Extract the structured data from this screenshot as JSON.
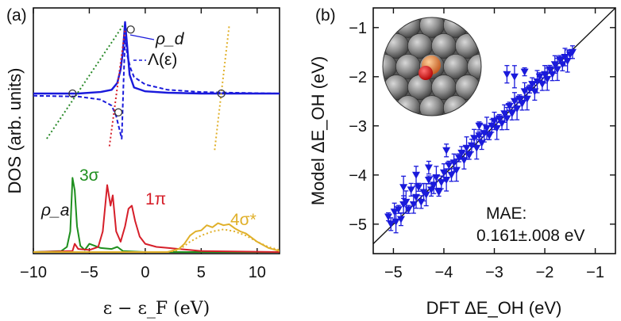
{
  "chart_data": [
    {
      "type": "line",
      "panel": "(a)",
      "xlabel": "ε − ε_F (eV)",
      "ylabel": "DOS (arb. units)",
      "xlim": [
        -10,
        12
      ],
      "xticks": [
        -10,
        -5,
        0,
        5,
        10
      ],
      "xtick_labels": [
        "−10",
        "−5",
        "0",
        "5",
        "10"
      ],
      "labels": {
        "rho_d": "ρ_d",
        "lambda": "Λ(ε)",
        "rho_a": "ρ_a",
        "s3": "3σ",
        "p1": "1π",
        "s4": "4σ*"
      },
      "series": [
        {
          "name": "ρ_d",
          "color": "#1a1adb",
          "style": "solid",
          "x": [
            -10,
            -6,
            -4,
            -3,
            -2.5,
            -2.2,
            -2.0,
            -1.8,
            -1.6,
            -1.4,
            -1.0,
            0,
            2,
            5,
            8,
            12
          ],
          "y": [
            0.0,
            0.0,
            0.02,
            0.05,
            0.14,
            0.32,
            0.55,
            0.95,
            0.6,
            0.25,
            0.08,
            0.03,
            0.01,
            0.0,
            0.0,
            0.0
          ]
        },
        {
          "name": "Λ(ε)",
          "color": "#1a1adb",
          "style": "dashed",
          "x": [
            -10,
            -6,
            -4,
            -3,
            -2.6,
            -2.3,
            -2.1,
            -1.95,
            -1.8,
            -1.6,
            -1.3,
            -1,
            0,
            2,
            5,
            8,
            12
          ],
          "y": [
            -0.03,
            -0.04,
            -0.08,
            -0.16,
            -0.3,
            -0.48,
            -0.6,
            0.1,
            0.75,
            0.5,
            0.33,
            0.22,
            0.12,
            0.05,
            0.02,
            0.01,
            0.0
          ]
        },
        {
          "name": "3σ line",
          "color": "#2a8a2a",
          "style": "dotted",
          "x": [
            -8.8,
            -2.0
          ],
          "y": [
            -0.6,
            0.9
          ]
        },
        {
          "name": "1π line",
          "color": "#d61f2a",
          "style": "dotted",
          "x": [
            -3.2,
            -1.8
          ],
          "y": [
            -0.7,
            0.85
          ]
        },
        {
          "name": "4σ* line",
          "color": "#e0b02a",
          "style": "dotted",
          "x": [
            6.2,
            7.5
          ],
          "y": [
            -0.75,
            0.9
          ]
        },
        {
          "name": "ρ_a (3σ)",
          "color": "#1e8f1e",
          "style": "solid",
          "x": [
            -10,
            -7.5,
            -7.0,
            -6.7,
            -6.5,
            -6.3,
            -6.1,
            -5.8,
            -5.4,
            -5.0,
            -4.0,
            -3.0,
            -2.5,
            -2.0,
            0,
            12
          ],
          "y": [
            0,
            0.01,
            0.05,
            0.2,
            0.72,
            0.6,
            0.25,
            0.06,
            0.02,
            0.08,
            0.04,
            0.03,
            0.05,
            0.01,
            0.0,
            0.0
          ]
        },
        {
          "name": "ρ_a (1π)",
          "color": "#d61f2a",
          "style": "solid",
          "x": [
            -10,
            -6.5,
            -6.3,
            -6.0,
            -5.0,
            -4.2,
            -3.8,
            -3.4,
            -3.1,
            -2.9,
            -2.6,
            -2.2,
            -1.8,
            -1.5,
            -1.2,
            -0.9,
            -0.5,
            0,
            1,
            2,
            3,
            4,
            5,
            12
          ],
          "y": [
            0,
            0.01,
            0.08,
            0.03,
            0.02,
            0.05,
            0.2,
            0.65,
            0.45,
            0.55,
            0.2,
            0.1,
            0.25,
            0.42,
            0.45,
            0.3,
            0.15,
            0.08,
            0.05,
            0.04,
            0.03,
            0.02,
            0.01,
            0.0
          ]
        },
        {
          "name": "ρ_a (4σ*)",
          "color": "#e0b02a",
          "style": "solid",
          "x": [
            -10,
            2,
            3,
            3.5,
            4,
            4.5,
            5,
            5.5,
            6,
            6.5,
            7,
            7.5,
            8,
            8.5,
            9,
            9.5,
            10,
            10.5,
            11,
            12
          ],
          "y": [
            0,
            0.0,
            0.03,
            0.08,
            0.16,
            0.2,
            0.21,
            0.26,
            0.24,
            0.28,
            0.26,
            0.27,
            0.23,
            0.2,
            0.18,
            0.14,
            0.1,
            0.07,
            0.04,
            0.01
          ]
        },
        {
          "name": "ρ_a (4σ*) dotted",
          "color": "#e0b02a",
          "style": "dotted",
          "x": [
            2,
            3,
            4,
            5,
            6,
            7,
            8,
            9,
            10,
            11,
            12
          ],
          "y": [
            0.0,
            0.02,
            0.1,
            0.16,
            0.2,
            0.22,
            0.2,
            0.16,
            0.1,
            0.05,
            0.02
          ]
        }
      ],
      "markers": [
        {
          "x": -6.5,
          "y": 0.0
        },
        {
          "x": -2.4,
          "y": -0.25
        },
        {
          "x": 6.8,
          "y": 0.0
        },
        {
          "x": -1.3,
          "y": 0.85
        }
      ]
    },
    {
      "type": "scatter",
      "panel": "(b)",
      "title": "",
      "xlabel": "DFT ΔE_OH (eV)",
      "ylabel": "Model ΔE_OH (eV)",
      "xlim": [
        -5.4,
        -0.6
      ],
      "ylim": [
        -5.6,
        -0.6
      ],
      "xticks": [
        -5,
        -4,
        -3,
        -2,
        -1
      ],
      "xtick_labels": [
        "−5",
        "−4",
        "−3",
        "−2",
        "−1"
      ],
      "yticks": [
        -5,
        -4,
        -3,
        -2,
        -1
      ],
      "ytick_labels": [
        "−5",
        "−4",
        "−3",
        "−2",
        "−1"
      ],
      "annotation": {
        "title": "MAE:",
        "value": "0.161±.008 eV"
      },
      "color": "#1a1adb",
      "parity_line": true,
      "points": [
        [
          -5.1,
          -4.85
        ],
        [
          -5.05,
          -5.0
        ],
        [
          -4.98,
          -4.75
        ],
        [
          -4.95,
          -4.95
        ],
        [
          -4.9,
          -4.7
        ],
        [
          -4.85,
          -4.9
        ],
        [
          -4.8,
          -4.6
        ],
        [
          -4.75,
          -4.55
        ],
        [
          -4.7,
          -4.7
        ],
        [
          -4.65,
          -4.3
        ],
        [
          -4.6,
          -4.6
        ],
        [
          -4.55,
          -4.45
        ],
        [
          -4.5,
          -4.25
        ],
        [
          -4.45,
          -4.55
        ],
        [
          -4.4,
          -4.35
        ],
        [
          -4.35,
          -4.4
        ],
        [
          -4.3,
          -4.1
        ],
        [
          -4.25,
          -4.3
        ],
        [
          -4.2,
          -4.2
        ],
        [
          -4.15,
          -4.05
        ],
        [
          -4.1,
          -4.35
        ],
        [
          -4.05,
          -4.15
        ],
        [
          -4.0,
          -3.95
        ],
        [
          -3.95,
          -4.1
        ],
        [
          -3.9,
          -3.8
        ],
        [
          -3.85,
          -4.0
        ],
        [
          -3.8,
          -3.75
        ],
        [
          -3.75,
          -3.9
        ],
        [
          -3.7,
          -3.65
        ],
        [
          -3.65,
          -3.55
        ],
        [
          -3.6,
          -3.7
        ],
        [
          -3.55,
          -3.45
        ],
        [
          -3.5,
          -3.6
        ],
        [
          -3.45,
          -3.4
        ],
        [
          -3.4,
          -3.25
        ],
        [
          -3.35,
          -3.45
        ],
        [
          -3.3,
          -3.2
        ],
        [
          -3.25,
          -3.35
        ],
        [
          -3.2,
          -3.15
        ],
        [
          -3.15,
          -3.05
        ],
        [
          -3.1,
          -3.2
        ],
        [
          -3.05,
          -3.0
        ],
        [
          -3.0,
          -2.9
        ],
        [
          -2.95,
          -3.05
        ],
        [
          -2.9,
          -2.85
        ],
        [
          -2.85,
          -2.95
        ],
        [
          -2.8,
          -2.75
        ],
        [
          -2.75,
          -2.85
        ],
        [
          -2.7,
          -2.6
        ],
        [
          -2.65,
          -2.75
        ],
        [
          -2.6,
          -2.5
        ],
        [
          -2.55,
          -2.65
        ],
        [
          -2.5,
          -2.45
        ],
        [
          -2.45,
          -2.55
        ],
        [
          -2.4,
          -2.3
        ],
        [
          -2.35,
          -2.45
        ],
        [
          -2.3,
          -2.25
        ],
        [
          -2.25,
          -2.15
        ],
        [
          -2.2,
          -2.3
        ],
        [
          -2.15,
          -2.1
        ],
        [
          -2.1,
          -2.0
        ],
        [
          -2.05,
          -2.15
        ],
        [
          -2.0,
          -1.95
        ],
        [
          -1.95,
          -2.05
        ],
        [
          -1.9,
          -1.85
        ],
        [
          -1.85,
          -1.95
        ],
        [
          -1.8,
          -1.75
        ],
        [
          -1.75,
          -1.85
        ],
        [
          -1.7,
          -1.65
        ],
        [
          -1.65,
          -1.75
        ],
        [
          -1.6,
          -1.6
        ],
        [
          -1.55,
          -1.68
        ],
        [
          -1.5,
          -1.55
        ],
        [
          -1.45,
          -1.5
        ],
        [
          -2.75,
          -1.95
        ],
        [
          -2.6,
          -2.0
        ],
        [
          -2.4,
          -1.9
        ],
        [
          -4.3,
          -3.85
        ],
        [
          -4.55,
          -4.0
        ],
        [
          -4.8,
          -4.25
        ],
        [
          -3.3,
          -3.0
        ],
        [
          -3.95,
          -3.5
        ]
      ]
    }
  ]
}
